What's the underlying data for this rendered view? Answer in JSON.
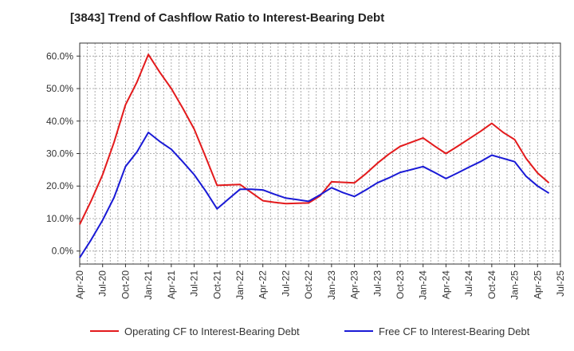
{
  "chart_data": {
    "type": "line",
    "title": "[3843]  Trend of Cashflow Ratio to Interest-Bearing Debt",
    "xlabel": "",
    "ylabel": "",
    "x_tick_labels": [
      "Apr-20",
      "Jul-20",
      "Oct-20",
      "Jan-21",
      "Apr-21",
      "Jul-21",
      "Oct-21",
      "Jan-22",
      "Apr-22",
      "Jul-22",
      "Oct-22",
      "Jan-23",
      "Apr-23",
      "Jul-23",
      "Oct-23",
      "Jan-24",
      "Apr-24",
      "Jul-24",
      "Oct-24",
      "Jan-25",
      "Apr-25",
      "Jul-25"
    ],
    "y_tick_labels": [
      "0.0%",
      "10.0%",
      "20.0%",
      "30.0%",
      "40.0%",
      "50.0%",
      "60.0%"
    ],
    "ylim": [
      -4,
      64
    ],
    "y_ticks": [
      0,
      10,
      20,
      30,
      40,
      50,
      60
    ],
    "grid": true,
    "legend_position": "bottom",
    "series": [
      {
        "name": "Operating CF to Interest-Bearing Debt",
        "color": "#e31a1c",
        "points": [
          [
            0,
            8.2
          ],
          [
            1,
            15.5
          ],
          [
            2,
            23.5
          ],
          [
            3,
            33.5
          ],
          [
            4,
            45.0
          ],
          [
            5,
            52.0
          ],
          [
            6,
            60.5
          ],
          [
            7,
            55.0
          ],
          [
            8,
            50.0
          ],
          [
            9,
            44.0
          ],
          [
            10,
            37.5
          ],
          [
            11,
            29.0
          ],
          [
            12,
            20.2
          ],
          [
            14,
            20.5
          ],
          [
            15,
            18.0
          ],
          [
            16,
            15.5
          ],
          [
            17,
            15.0
          ],
          [
            18,
            14.6
          ],
          [
            20,
            14.8
          ],
          [
            21,
            17.0
          ],
          [
            22,
            21.3
          ],
          [
            24,
            21.0
          ],
          [
            25,
            23.8
          ],
          [
            26,
            27.0
          ],
          [
            27,
            29.8
          ],
          [
            28,
            32.2
          ],
          [
            29,
            33.5
          ],
          [
            30,
            34.8
          ],
          [
            31,
            32.3
          ],
          [
            32,
            30.0
          ],
          [
            33,
            32.2
          ],
          [
            34,
            34.5
          ],
          [
            35,
            36.8
          ],
          [
            36,
            39.3
          ],
          [
            37,
            36.5
          ],
          [
            38,
            34.3
          ],
          [
            39,
            28.5
          ],
          [
            40,
            24.0
          ],
          [
            41,
            21.0
          ]
        ]
      },
      {
        "name": "Free CF to Interest-Bearing Debt",
        "color": "#1a1ad6",
        "points": [
          [
            0,
            -2.0
          ],
          [
            1,
            3.5
          ],
          [
            2,
            9.5
          ],
          [
            3,
            16.5
          ],
          [
            4,
            26.0
          ],
          [
            5,
            30.5
          ],
          [
            6,
            36.5
          ],
          [
            7,
            33.7
          ],
          [
            8,
            31.3
          ],
          [
            9,
            27.5
          ],
          [
            10,
            23.5
          ],
          [
            11,
            18.5
          ],
          [
            12,
            13.0
          ],
          [
            13,
            16.0
          ],
          [
            14,
            19.0
          ],
          [
            15,
            19.0
          ],
          [
            16,
            18.8
          ],
          [
            17,
            17.5
          ],
          [
            18,
            16.3
          ],
          [
            19,
            15.8
          ],
          [
            20,
            15.3
          ],
          [
            21,
            17.3
          ],
          [
            22,
            19.5
          ],
          [
            23,
            18.0
          ],
          [
            24,
            16.8
          ],
          [
            25,
            18.8
          ],
          [
            26,
            21.0
          ],
          [
            27,
            22.5
          ],
          [
            28,
            24.2
          ],
          [
            29,
            25.1
          ],
          [
            30,
            26.0
          ],
          [
            31,
            24.2
          ],
          [
            32,
            22.3
          ],
          [
            33,
            24.0
          ],
          [
            34,
            25.8
          ],
          [
            35,
            27.5
          ],
          [
            36,
            29.5
          ],
          [
            37,
            28.5
          ],
          [
            38,
            27.5
          ],
          [
            39,
            23.0
          ],
          [
            40,
            20.0
          ],
          [
            41,
            17.8
          ]
        ]
      }
    ]
  }
}
